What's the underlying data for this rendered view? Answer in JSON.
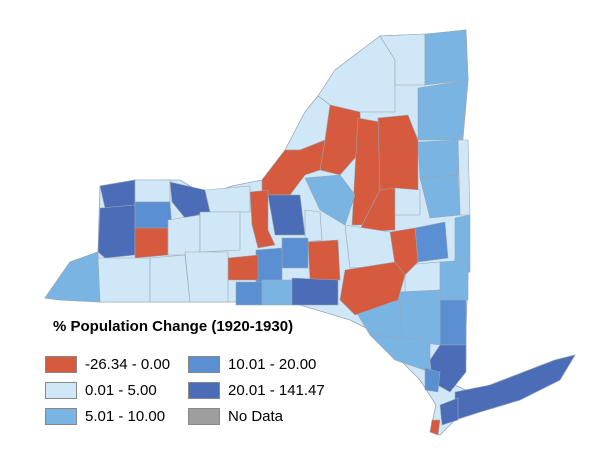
{
  "legend": {
    "title": "% Population Change (1920-1930)",
    "items": [
      {
        "label": "-26.34 - 0.00",
        "color": "#d65a3e"
      },
      {
        "label": "0.01 - 5.00",
        "color": "#cfe7f7"
      },
      {
        "label": "5.01 - 10.00",
        "color": "#79b4e3"
      },
      {
        "label": "10.01 - 20.00",
        "color": "#5a90d2"
      },
      {
        "label": "20.01 - 141.47",
        "color": "#4b6db8"
      },
      {
        "label": "No Data",
        "color": "#9e9e9e"
      }
    ]
  }
}
